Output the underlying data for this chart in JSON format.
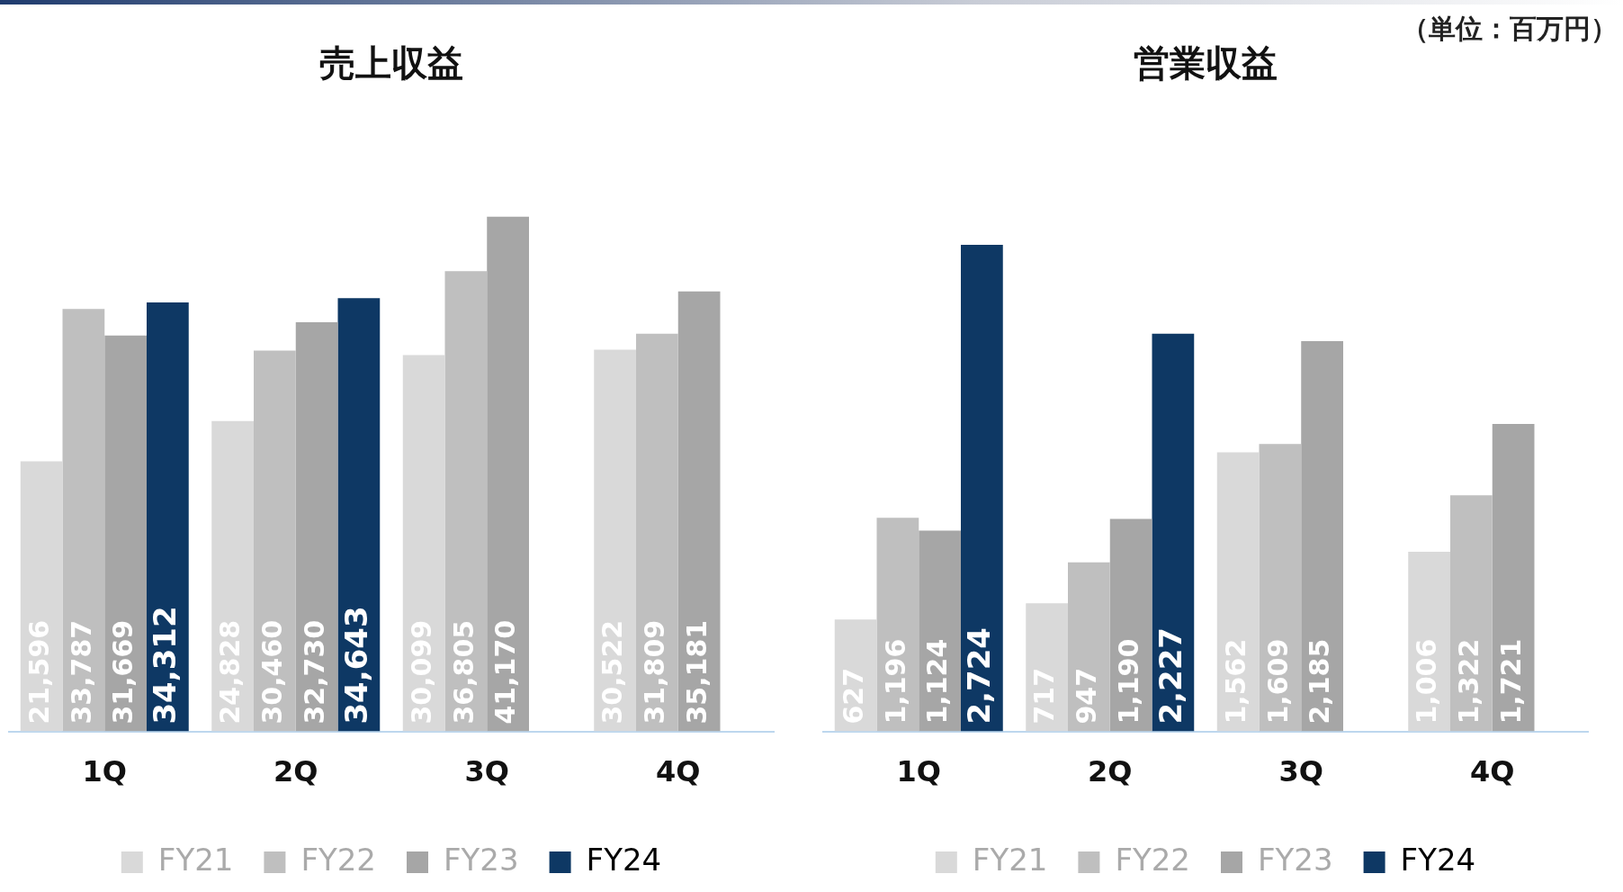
{
  "chart_data": [
    {
      "type": "bar",
      "title": "売上収益",
      "categories": [
        "1Q",
        "2Q",
        "3Q",
        "4Q"
      ],
      "legend": "bottom",
      "grid": false,
      "series": [
        {
          "name": "FY21",
          "color": "#d9d9d9",
          "values": [
            21596,
            24828,
            30099,
            30522
          ],
          "value_labels": [
            "21,596",
            "24,828",
            "30,099",
            "30,522"
          ]
        },
        {
          "name": "FY22",
          "color": "#bfbfbf",
          "values": [
            33787,
            30460,
            36805,
            31809
          ],
          "value_labels": [
            "33,787",
            "30,460",
            "36,805",
            "31,809"
          ]
        },
        {
          "name": "FY23",
          "color": "#a6a6a6",
          "values": [
            31669,
            32730,
            41170,
            35181
          ],
          "value_labels": [
            "31,669",
            "32,730",
            "41,170",
            "35,181"
          ]
        },
        {
          "name": "FY24",
          "color": "#0e3864",
          "values": [
            34312,
            34643,
            null,
            null
          ],
          "value_labels": [
            "34,312",
            "34,643",
            null,
            null
          ]
        }
      ]
    },
    {
      "type": "bar",
      "title": "営業収益",
      "categories": [
        "1Q",
        "2Q",
        "3Q",
        "4Q"
      ],
      "legend": "bottom",
      "grid": false,
      "annotations": [
        "（単位：百万円）"
      ],
      "series": [
        {
          "name": "FY21",
          "color": "#d9d9d9",
          "values": [
            627,
            717,
            1562,
            1006
          ],
          "value_labels": [
            "627",
            "717",
            "1,562",
            "1,006"
          ]
        },
        {
          "name": "FY22",
          "color": "#bfbfbf",
          "values": [
            1196,
            947,
            1609,
            1322
          ],
          "value_labels": [
            "1,196",
            "947",
            "1,609",
            "1,322"
          ]
        },
        {
          "name": "FY23",
          "color": "#a6a6a6",
          "values": [
            1124,
            1190,
            2185,
            1721
          ],
          "value_labels": [
            "1,124",
            "1,190",
            "2,185",
            "1,721"
          ]
        },
        {
          "name": "FY24",
          "color": "#0e3864",
          "values": [
            2724,
            2227,
            null,
            null
          ],
          "value_labels": [
            "2,724",
            "2,227",
            null,
            null
          ]
        }
      ]
    }
  ]
}
